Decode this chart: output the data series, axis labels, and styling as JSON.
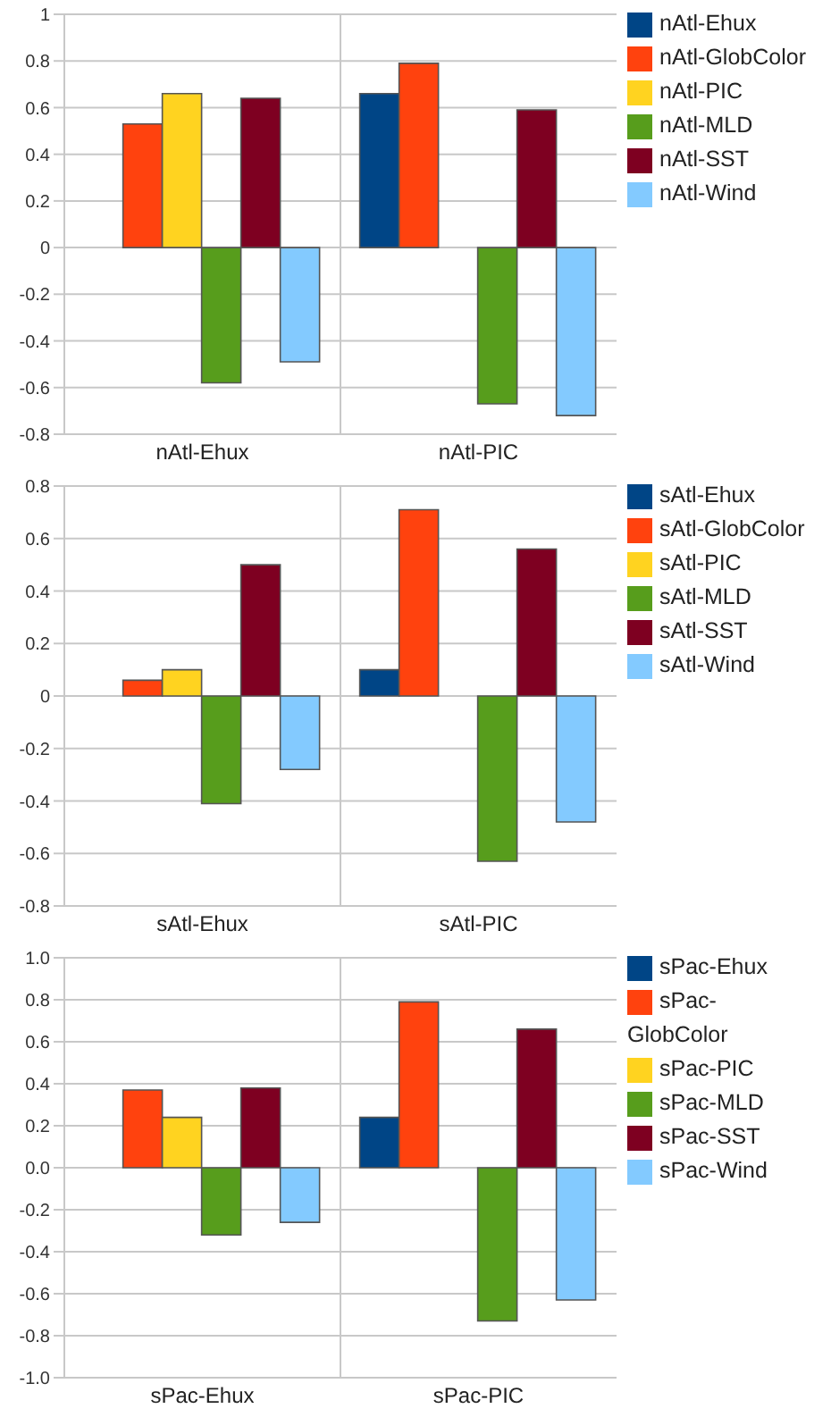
{
  "chart_data": [
    {
      "type": "bar",
      "categories": [
        "nAtl-Ehux",
        "nAtl-PIC"
      ],
      "ylim": [
        -0.8,
        1
      ],
      "yticks": [
        -0.8,
        -0.6,
        -0.4,
        -0.2,
        0,
        0.2,
        0.4,
        0.6,
        0.8,
        1
      ],
      "grid": true,
      "legend": "right",
      "series": [
        {
          "name": "nAtl-Ehux",
          "color": "#004586",
          "values": [
            null,
            0.66
          ]
        },
        {
          "name": "nAtl-GlobColor",
          "color": "#ff420e",
          "values": [
            0.53,
            0.79
          ]
        },
        {
          "name": "nAtl-PIC",
          "color": "#ffd320",
          "values": [
            0.66,
            null
          ]
        },
        {
          "name": "nAtl-MLD",
          "color": "#579d1c",
          "values": [
            -0.58,
            -0.67
          ]
        },
        {
          "name": "nAtl-SST",
          "color": "#7e0021",
          "values": [
            0.64,
            0.59
          ]
        },
        {
          "name": "nAtl-Wind",
          "color": "#83caff",
          "values": [
            -0.49,
            -0.72
          ]
        }
      ]
    },
    {
      "type": "bar",
      "categories": [
        "sAtl-Ehux",
        "sAtl-PIC"
      ],
      "ylim": [
        -0.8,
        0.8
      ],
      "yticks": [
        -0.8,
        -0.6,
        -0.4,
        -0.2,
        0,
        0.2,
        0.4,
        0.6,
        0.8
      ],
      "grid": true,
      "legend": "right",
      "series": [
        {
          "name": "sAtl-Ehux",
          "color": "#004586",
          "values": [
            null,
            0.1
          ]
        },
        {
          "name": "sAtl-GlobColor",
          "color": "#ff420e",
          "values": [
            0.06,
            0.71
          ]
        },
        {
          "name": "sAtl-PIC",
          "color": "#ffd320",
          "values": [
            0.1,
            null
          ]
        },
        {
          "name": "sAtl-MLD",
          "color": "#579d1c",
          "values": [
            -0.41,
            -0.63
          ]
        },
        {
          "name": "sAtl-SST",
          "color": "#7e0021",
          "values": [
            0.5,
            0.56
          ]
        },
        {
          "name": "sAtl-Wind",
          "color": "#83caff",
          "values": [
            -0.28,
            -0.48
          ]
        }
      ]
    },
    {
      "type": "bar",
      "categories": [
        "sPac-Ehux",
        "sPac-PIC"
      ],
      "ylim": [
        -1,
        1
      ],
      "yticks": [
        {
          "value": -1,
          "label": "-1.0"
        },
        -0.8,
        -0.6,
        -0.4,
        -0.2,
        {
          "value": 0,
          "label": "0.0"
        },
        0.2,
        0.4,
        0.6,
        0.8,
        {
          "value": 1,
          "label": "1.0"
        }
      ],
      "grid": true,
      "legend": "right",
      "series": [
        {
          "name": "sPac-Ehux",
          "color": "#004586",
          "values": [
            null,
            0.24
          ]
        },
        {
          "name": "sPac-GlobColor",
          "color": "#ff420e",
          "values": [
            0.37,
            0.79
          ]
        },
        {
          "name": "sPac-PIC",
          "color": "#ffd320",
          "values": [
            0.24,
            null
          ]
        },
        {
          "name": "sPac-MLD",
          "color": "#579d1c",
          "values": [
            -0.32,
            -0.73
          ]
        },
        {
          "name": "sPac-SST",
          "color": "#7e0021",
          "values": [
            0.38,
            0.66
          ]
        },
        {
          "name": "sPac-Wind",
          "color": "#83caff",
          "values": [
            -0.26,
            -0.63
          ]
        }
      ]
    }
  ]
}
